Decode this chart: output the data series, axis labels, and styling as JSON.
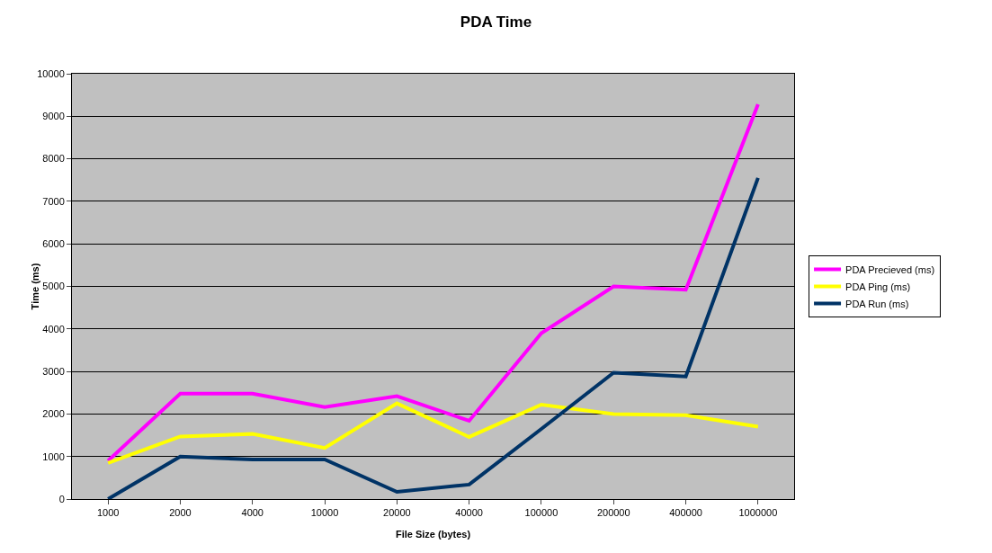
{
  "chart_data": {
    "type": "line",
    "title": "PDA Time",
    "xlabel": "File Size (bytes)",
    "ylabel": "Time (ms)",
    "categories": [
      "1000",
      "2000",
      "4000",
      "10000",
      "20000",
      "40000",
      "100000",
      "200000",
      "400000",
      "1000000"
    ],
    "series": [
      {
        "name": "PDA Precieved (ms)",
        "color": "#ff00ff",
        "values": [
          900,
          2480,
          2480,
          2160,
          2420,
          1840,
          3900,
          5000,
          4920,
          9280
        ]
      },
      {
        "name": "PDA Ping (ms)",
        "color": "#ffff00",
        "values": [
          850,
          1470,
          1530,
          1200,
          2250,
          1460,
          2220,
          2000,
          1970,
          1700
        ]
      },
      {
        "name": "PDA Run (ms)",
        "color": "#003366",
        "values": [
          0,
          1000,
          930,
          930,
          170,
          340,
          1650,
          2970,
          2880,
          7550
        ]
      }
    ],
    "ylim": [
      0,
      10000
    ],
    "yticks": [
      0,
      1000,
      2000,
      3000,
      4000,
      5000,
      6000,
      7000,
      8000,
      9000,
      10000
    ],
    "grid": "y",
    "legend": "right",
    "marker": "none",
    "line_style": "solid"
  }
}
